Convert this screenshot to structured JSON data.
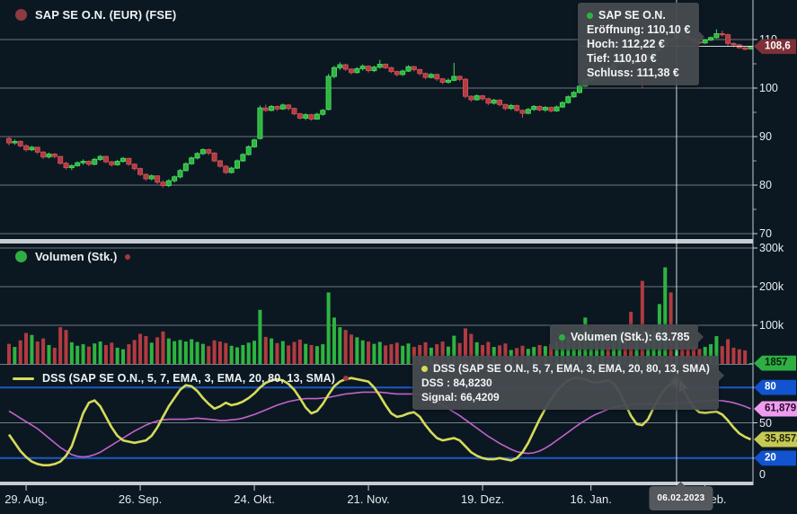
{
  "header": {
    "price_legend": "SAP SE O.N. (EUR) (FSE)",
    "volume_legend": "Volumen (Stk.)",
    "dss_legend": "DSS (SAP SE O.N., 5, 7, EMA, 3, EMA, 20, 80, 13, SMA)"
  },
  "tooltips": {
    "ohlc": {
      "title": "SAP SE O.N.",
      "open": "Eröffnung: 110,10 €",
      "high": "Hoch: 112,22 €",
      "low": "Tief: 110,10 €",
      "close": "Schluss: 111,38 €"
    },
    "volume": {
      "label": "Volumen (Stk.): 63.785"
    },
    "dss": {
      "title": "DSS (SAP SE O.N., 5, 7, EMA, 3, EMA, 20, 80, 13, SMA)",
      "dss_value": "DSS : 84,8230",
      "signal_value": "Signal: 66,4209"
    }
  },
  "badges": {
    "last_price": "108,6",
    "last_volume": "1857",
    "level_high": "80",
    "signal": "61,879",
    "dss": "35,8572",
    "level_low": "20",
    "date": "06.02.2023"
  },
  "axis": {
    "price_labels": [
      {
        "text": "110",
        "value": 110
      },
      {
        "text": "100",
        "value": 100
      },
      {
        "text": "90",
        "value": 90
      },
      {
        "text": "80",
        "value": 80
      },
      {
        "text": "70",
        "value": 70
      }
    ],
    "price_minor_ticks": [
      105,
      95,
      85,
      75
    ],
    "volume_labels": [
      {
        "text": "300k",
        "value": 300000
      },
      {
        "text": "200k",
        "value": 200000
      },
      {
        "text": "100k",
        "value": 100000
      }
    ],
    "dss_plain_labels": [
      {
        "text": "50",
        "value": 50
      },
      {
        "text": "0",
        "value": 0
      }
    ],
    "x_ticks": [
      {
        "label": "29. Aug.",
        "index": 3
      },
      {
        "label": "26. Sep.",
        "index": 23
      },
      {
        "label": "24. Okt.",
        "index": 43
      },
      {
        "label": "21. Nov.",
        "index": 63
      },
      {
        "label": "19. Dez.",
        "index": 83
      },
      {
        "label": "16. Jan.",
        "index": 102
      },
      {
        "label": "13. Feb.",
        "index": 122
      }
    ]
  },
  "chart_data": {
    "type": "candlestick",
    "title": "SAP SE O.N. (EUR) (FSE) with Volumen (Stk.) and DSS oscillator",
    "panels": [
      "price-candles",
      "volume-bars",
      "dss-oscillator"
    ],
    "price_axis_range": [
      68,
      114
    ],
    "volume_axis_range": [
      0,
      310000
    ],
    "dss_axis_range": [
      0,
      100
    ],
    "dss_levels": [
      80,
      20
    ],
    "crosshair": {
      "index": 117,
      "date": "06.02.2023",
      "price_level": 108.6,
      "ohlc": {
        "open": 110.1,
        "high": 112.22,
        "low": 110.1,
        "close": 111.38
      },
      "volume": 63785,
      "dss": 84.823,
      "signal": 66.4209
    },
    "last_values": {
      "close": 108.6,
      "volume": 1857,
      "dss": 35.8572,
      "signal": 61.879
    },
    "candles_ohlcv": [
      [
        89.6,
        89.9,
        88.2,
        88.7,
        52000
      ],
      [
        88.7,
        89.4,
        88.3,
        89.0,
        44000
      ],
      [
        89.0,
        89.2,
        87.8,
        88.1,
        61000
      ],
      [
        88.1,
        88.4,
        86.9,
        87.3,
        80000
      ],
      [
        87.3,
        88.1,
        87.0,
        87.8,
        75000
      ],
      [
        87.8,
        87.9,
        86.4,
        86.8,
        58000
      ],
      [
        86.8,
        87.0,
        85.4,
        85.8,
        66000
      ],
      [
        85.8,
        86.7,
        85.5,
        86.4,
        49000
      ],
      [
        86.4,
        86.6,
        85.5,
        85.9,
        42000
      ],
      [
        85.9,
        86.0,
        84.2,
        84.5,
        95000
      ],
      [
        84.5,
        84.8,
        83.2,
        83.6,
        88000
      ],
      [
        83.6,
        84.3,
        83.1,
        84.0,
        56000
      ],
      [
        84.0,
        84.9,
        83.8,
        84.6,
        47000
      ],
      [
        84.6,
        85.3,
        84.2,
        84.9,
        51000
      ],
      [
        84.9,
        85.1,
        83.9,
        84.3,
        45000
      ],
      [
        84.3,
        85.6,
        84.1,
        85.3,
        53000
      ],
      [
        85.3,
        86.2,
        85.0,
        85.9,
        58000
      ],
      [
        85.9,
        86.1,
        84.5,
        84.8,
        49000
      ],
      [
        84.8,
        85.0,
        83.8,
        84.2,
        55000
      ],
      [
        84.2,
        85.2,
        84.0,
        84.9,
        42000
      ],
      [
        84.9,
        85.8,
        84.6,
        85.5,
        38000
      ],
      [
        85.5,
        85.6,
        84.0,
        84.3,
        51000
      ],
      [
        84.3,
        84.5,
        83.0,
        83.4,
        62000
      ],
      [
        83.4,
        83.6,
        81.9,
        82.2,
        78000
      ],
      [
        82.2,
        82.4,
        80.9,
        81.3,
        72000
      ],
      [
        81.3,
        82.2,
        81.0,
        81.9,
        55000
      ],
      [
        81.9,
        82.0,
        80.2,
        80.6,
        69000
      ],
      [
        80.6,
        81.0,
        79.5,
        79.9,
        84000
      ],
      [
        79.9,
        81.2,
        79.6,
        80.9,
        66000
      ],
      [
        80.9,
        82.0,
        80.5,
        81.7,
        59000
      ],
      [
        81.7,
        83.3,
        81.4,
        83.0,
        62000
      ],
      [
        83.0,
        84.7,
        82.8,
        84.4,
        58000
      ],
      [
        84.4,
        85.9,
        84.2,
        85.6,
        64000
      ],
      [
        85.6,
        86.8,
        85.3,
        86.5,
        57000
      ],
      [
        86.5,
        87.6,
        86.2,
        87.3,
        52000
      ],
      [
        87.3,
        87.5,
        86.2,
        86.6,
        46000
      ],
      [
        86.6,
        86.8,
        84.7,
        85.0,
        61000
      ],
      [
        85.0,
        85.2,
        83.6,
        83.9,
        58000
      ],
      [
        83.9,
        84.1,
        82.3,
        82.6,
        54000
      ],
      [
        82.6,
        83.8,
        82.4,
        83.5,
        47000
      ],
      [
        83.5,
        85.3,
        83.3,
        85.0,
        43000
      ],
      [
        85.0,
        86.6,
        84.8,
        86.3,
        49000
      ],
      [
        86.3,
        88.2,
        86.1,
        87.9,
        55000
      ],
      [
        87.9,
        89.6,
        87.7,
        89.3,
        60000
      ],
      [
        89.6,
        96.4,
        89.4,
        95.9,
        140000
      ],
      [
        95.9,
        96.6,
        95.1,
        95.4,
        70000
      ],
      [
        95.4,
        96.5,
        95.2,
        96.2,
        66000
      ],
      [
        96.2,
        96.4,
        95.3,
        95.7,
        54000
      ],
      [
        95.7,
        96.8,
        95.5,
        96.5,
        59000
      ],
      [
        96.5,
        96.7,
        95.4,
        95.8,
        48000
      ],
      [
        95.8,
        96.0,
        94.4,
        94.7,
        57000
      ],
      [
        94.7,
        94.9,
        93.5,
        93.8,
        63000
      ],
      [
        93.8,
        94.8,
        93.4,
        94.5,
        52000
      ],
      [
        94.5,
        94.7,
        93.3,
        93.6,
        49000
      ],
      [
        93.6,
        94.9,
        93.5,
        94.6,
        46000
      ],
      [
        94.6,
        95.7,
        94.3,
        95.4,
        51000
      ],
      [
        95.6,
        102.9,
        95.4,
        102.4,
        185000
      ],
      [
        102.4,
        104.6,
        102.0,
        104.2,
        120000
      ],
      [
        104.2,
        105.3,
        103.7,
        104.8,
        95000
      ],
      [
        104.8,
        105.0,
        103.5,
        103.9,
        88000
      ],
      [
        103.9,
        104.1,
        102.8,
        103.2,
        76000
      ],
      [
        103.2,
        104.3,
        103.0,
        104.0,
        69000
      ],
      [
        104.0,
        104.9,
        103.6,
        104.5,
        61000
      ],
      [
        104.5,
        104.7,
        103.2,
        103.6,
        58000
      ],
      [
        103.6,
        104.6,
        103.3,
        104.3,
        52000
      ],
      [
        104.3,
        105.8,
        104.0,
        104.9,
        57000
      ],
      [
        104.9,
        105.1,
        103.9,
        104.2,
        48000
      ],
      [
        104.2,
        104.4,
        103.1,
        103.4,
        51000
      ],
      [
        103.4,
        103.6,
        102.4,
        102.8,
        55000
      ],
      [
        102.8,
        103.8,
        102.5,
        103.5,
        47000
      ],
      [
        103.5,
        104.7,
        103.3,
        104.4,
        53000
      ],
      [
        104.4,
        104.6,
        103.4,
        103.8,
        44000
      ],
      [
        103.8,
        104.0,
        102.6,
        103.0,
        49000
      ],
      [
        103.0,
        103.2,
        101.8,
        102.2,
        56000
      ],
      [
        102.2,
        103.1,
        102.0,
        102.8,
        42000
      ],
      [
        102.8,
        103.0,
        101.5,
        101.9,
        51000
      ],
      [
        101.9,
        102.1,
        100.8,
        101.2,
        58000
      ],
      [
        101.2,
        102.0,
        100.9,
        101.6,
        45000
      ],
      [
        101.6,
        105.2,
        101.4,
        102.4,
        73000
      ],
      [
        102.4,
        102.6,
        101.4,
        101.8,
        54000
      ],
      [
        101.8,
        102.1,
        97.9,
        98.3,
        92000
      ],
      [
        98.3,
        98.5,
        97.2,
        97.6,
        78000
      ],
      [
        97.6,
        98.7,
        97.4,
        98.4,
        56000
      ],
      [
        98.4,
        98.6,
        97.4,
        97.8,
        49000
      ],
      [
        97.8,
        98.0,
        96.5,
        96.9,
        57000
      ],
      [
        96.9,
        97.8,
        96.6,
        97.5,
        44000
      ],
      [
        97.5,
        97.7,
        96.2,
        96.6,
        48000
      ],
      [
        96.6,
        96.8,
        95.4,
        95.8,
        53000
      ],
      [
        95.8,
        96.7,
        95.5,
        96.4,
        36000
      ],
      [
        96.4,
        96.6,
        95.1,
        95.4,
        41000
      ],
      [
        95.4,
        95.6,
        93.9,
        94.8,
        47000
      ],
      [
        94.8,
        95.9,
        94.6,
        95.6,
        39000
      ],
      [
        95.6,
        96.5,
        95.3,
        96.2,
        44000
      ],
      [
        96.2,
        96.4,
        95.2,
        95.5,
        49000
      ],
      [
        95.5,
        96.3,
        95.1,
        96.0,
        46000
      ],
      [
        96.0,
        96.2,
        95.0,
        95.3,
        52000
      ],
      [
        95.3,
        96.4,
        95.1,
        96.1,
        57000
      ],
      [
        96.1,
        97.3,
        95.9,
        97.0,
        63000
      ],
      [
        97.0,
        98.5,
        96.8,
        98.2,
        71000
      ],
      [
        98.2,
        99.4,
        98.0,
        99.1,
        68000
      ],
      [
        99.1,
        100.7,
        98.9,
        100.4,
        84000
      ],
      [
        100.4,
        101.9,
        100.2,
        101.6,
        120000
      ],
      [
        101.6,
        102.6,
        101.1,
        102.3,
        88000
      ],
      [
        102.3,
        103.8,
        102.1,
        103.5,
        76000
      ],
      [
        103.5,
        104.7,
        103.2,
        104.4,
        69000
      ],
      [
        104.4,
        104.6,
        103.4,
        103.8,
        58000
      ],
      [
        103.8,
        105.3,
        103.6,
        105.0,
        72000
      ],
      [
        105.0,
        106.5,
        104.8,
        106.2,
        81000
      ],
      [
        106.2,
        106.4,
        105.1,
        105.5,
        64000
      ],
      [
        105.5,
        105.7,
        104.6,
        105.0,
        135000
      ],
      [
        105.0,
        106.7,
        104.8,
        106.4,
        93000
      ],
      [
        106.6,
        107.0,
        100.0,
        105.8,
        215000
      ],
      [
        105.8,
        107.2,
        105.5,
        106.9,
        87000
      ],
      [
        106.9,
        108.1,
        106.6,
        107.8,
        96000
      ],
      [
        107.8,
        109.2,
        107.5,
        108.9,
        155000
      ],
      [
        108.9,
        110.5,
        108.7,
        110.2,
        250000
      ],
      [
        110.2,
        110.4,
        109.0,
        109.4,
        185000
      ],
      [
        110.1,
        112.22,
        110.1,
        111.38,
        63785
      ],
      [
        111.38,
        111.6,
        110.4,
        110.7,
        59000
      ],
      [
        110.7,
        112.0,
        109.9,
        110.2,
        66000
      ],
      [
        110.2,
        110.4,
        109.2,
        109.5,
        48000
      ],
      [
        109.5,
        109.7,
        109.0,
        109.3,
        39000
      ],
      [
        109.3,
        110.1,
        109.1,
        109.9,
        44000
      ],
      [
        109.9,
        110.6,
        109.7,
        110.4,
        51000
      ],
      [
        110.4,
        112.1,
        110.2,
        111.2,
        72000
      ],
      [
        111.2,
        111.8,
        110.6,
        111.0,
        46000
      ],
      [
        111.0,
        111.2,
        108.6,
        109.2,
        64000
      ],
      [
        109.2,
        109.4,
        108.4,
        108.9,
        42000
      ],
      [
        108.9,
        109.1,
        108.1,
        108.3,
        38000
      ],
      [
        108.3,
        108.5,
        107.8,
        108.0,
        35000
      ],
      [
        108.1,
        108.7,
        107.9,
        108.6,
        1857
      ]
    ],
    "dss": [
      40,
      33,
      26,
      21,
      17,
      15,
      14,
      14,
      15,
      17,
      22,
      30,
      44,
      58,
      67,
      69,
      64,
      55,
      46,
      39,
      35,
      34,
      33,
      34,
      35,
      39,
      46,
      55,
      64,
      71,
      78,
      82,
      81,
      77,
      71,
      66,
      62,
      64,
      67,
      65,
      66,
      68,
      71,
      75,
      80,
      84,
      86,
      87,
      86,
      83,
      78,
      71,
      63,
      58,
      60,
      66,
      74,
      81,
      85,
      87,
      88,
      87,
      86,
      85,
      80,
      73,
      65,
      58,
      55,
      56,
      58,
      59,
      55,
      48,
      42,
      37,
      35,
      36,
      37,
      35,
      30,
      25,
      22,
      20,
      19,
      19,
      20,
      19,
      18,
      20,
      25,
      33,
      43,
      53,
      62,
      70,
      77,
      82,
      86,
      88,
      88,
      87,
      85,
      84,
      85,
      86,
      83,
      76,
      66,
      56,
      49,
      48,
      53,
      63,
      72,
      79,
      83,
      84.823,
      79,
      71,
      63,
      59,
      58.5,
      59,
      59.5,
      57,
      52,
      46,
      41,
      38,
      35.8572
    ],
    "signal": [
      60,
      57,
      54,
      51,
      48,
      45,
      41,
      37,
      33,
      29,
      26,
      23,
      21.5,
      21,
      21.5,
      23,
      25,
      28,
      31,
      34,
      37,
      40,
      43,
      45.5,
      48,
      50,
      51.5,
      52.5,
      53,
      53,
      53,
      53,
      53.5,
      54,
      53.5,
      53,
      52.5,
      52,
      52,
      52.5,
      53,
      54,
      55.5,
      57,
      59,
      61,
      63,
      65,
      66.5,
      68,
      69,
      70,
      70.5,
      70.5,
      70.5,
      71,
      71.5,
      72.5,
      73.5,
      74.5,
      75,
      75.5,
      76,
      76,
      76,
      76,
      75.5,
      75,
      74.5,
      74.5,
      74.5,
      74.5,
      74,
      72.5,
      70.5,
      68,
      65,
      62,
      59,
      56,
      52.5,
      49,
      45.5,
      42,
      38.5,
      35.5,
      32.5,
      30,
      27.5,
      25.5,
      24.5,
      24,
      24.5,
      26,
      28.5,
      31.5,
      35,
      38.5,
      42,
      45.5,
      49,
      52,
      55,
      57.5,
      59.5,
      61.5,
      63,
      64,
      65,
      65.5,
      65.8,
      66,
      66.1,
      66.2,
      66.3,
      66.35,
      66.4,
      66.4209,
      66.8,
      67.3,
      67.9,
      68.4,
      68.8,
      69,
      69,
      68.7,
      68,
      67,
      65.6,
      63.9,
      61.879
    ]
  },
  "colors": {
    "background": "#0b1822",
    "up": "#2eb440",
    "up_edge": "#46d95a",
    "down": "#b23b41",
    "down_edge": "#ce4e54",
    "dss_line": "#d6db5a",
    "signal_line": "#c263cb",
    "level_blue": "#1d59c4",
    "grid": "#cdd4d9",
    "separator": "#c6ccd2",
    "crosshair": "#e8ecef",
    "badge_price_bg": "#7e2f37",
    "badge_volume_bg": "#2fae44",
    "badge_level_bg": "#1254cf",
    "badge_signal_bg": "#ef9cef",
    "badge_dss_bg": "#c6ca55",
    "price_dot": "#8e3a42",
    "volume_dot": "#2fae44",
    "secondary_dot": "#a03a40"
  }
}
